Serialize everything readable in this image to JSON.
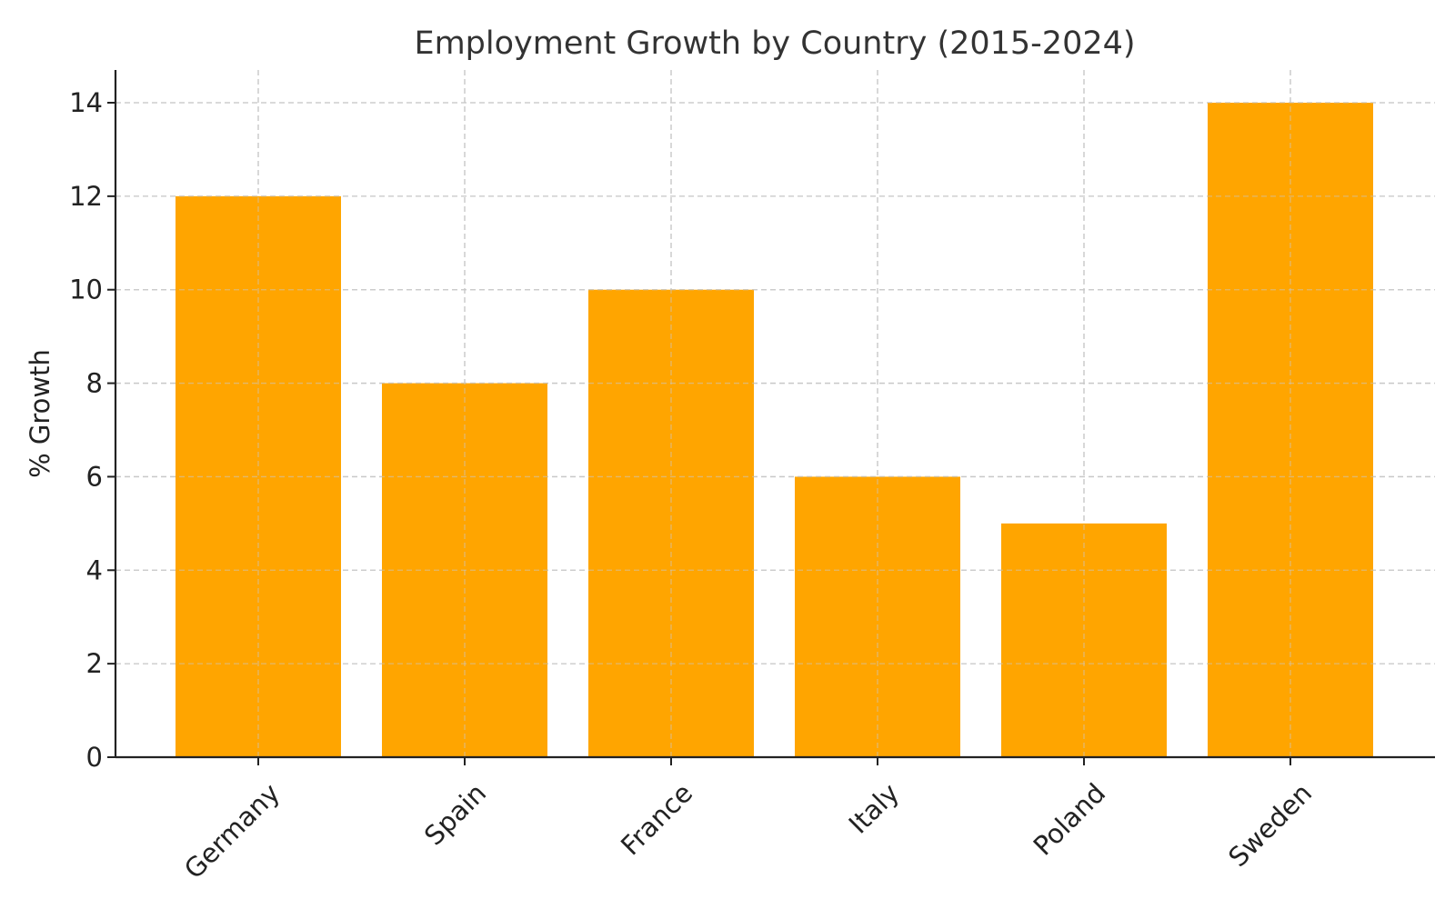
{
  "chart_data": {
    "type": "bar",
    "title": "Employment Growth by Country (2015-2024)",
    "xlabel": "",
    "ylabel": "% Growth",
    "categories": [
      "Germany",
      "Spain",
      "France",
      "Italy",
      "Poland",
      "Sweden"
    ],
    "values": [
      12,
      8,
      10,
      6,
      5,
      14
    ],
    "ylim": [
      0,
      14.7
    ],
    "yticks": [
      0,
      2,
      4,
      6,
      8,
      10,
      12,
      14
    ],
    "grid": true,
    "bar_color": "#FFA500",
    "x_tick_rotation_deg": 45
  }
}
